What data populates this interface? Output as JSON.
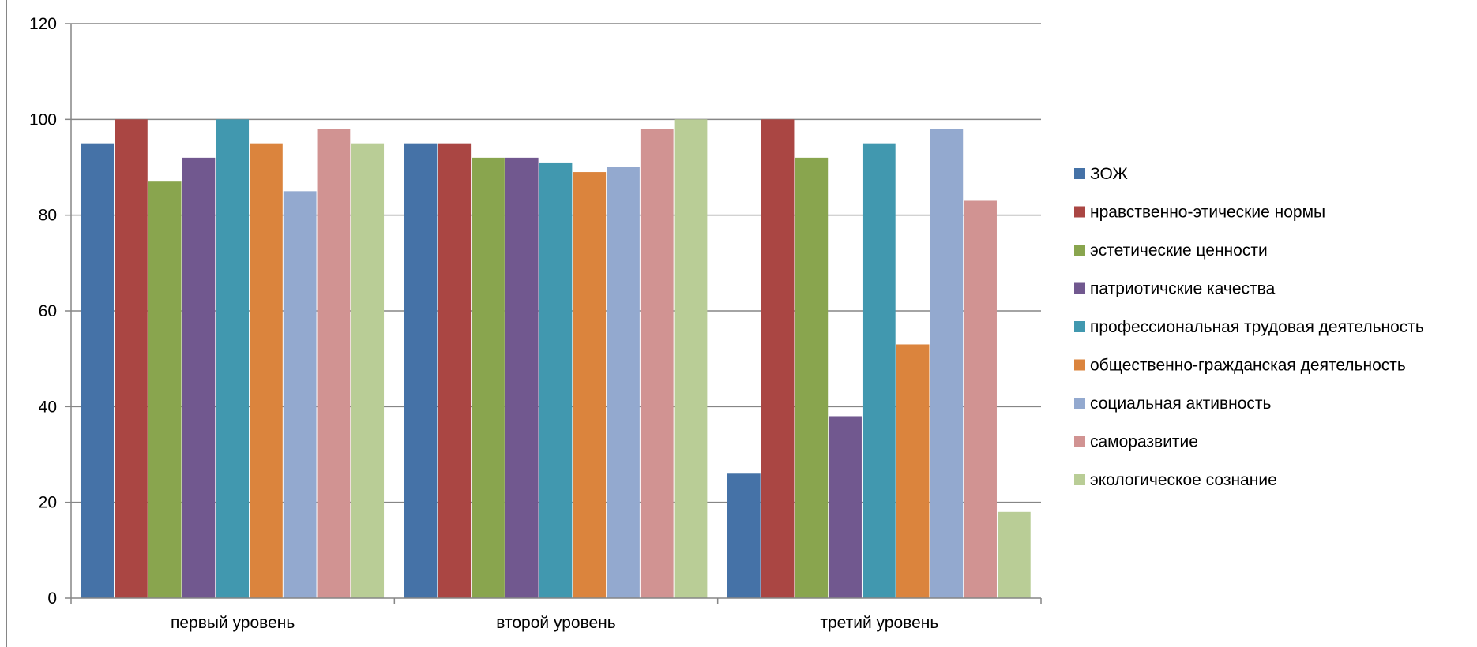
{
  "chart_data": {
    "type": "bar",
    "categories": [
      "первый уровень",
      "второй уровень",
      "третий уровень"
    ],
    "ylim": [
      0,
      120
    ],
    "yticks": [
      0,
      20,
      40,
      60,
      80,
      100,
      120
    ],
    "grid": true,
    "legend_position": "right",
    "series": [
      {
        "name": "ЗОЖ",
        "color": "#4572A7",
        "values": [
          95,
          95,
          26
        ]
      },
      {
        "name": "нравственно-этические нормы",
        "color": "#AA4643",
        "values": [
          100,
          95,
          100
        ]
      },
      {
        "name": "эстетические ценности",
        "color": "#89A54E",
        "values": [
          87,
          92,
          92
        ]
      },
      {
        "name": "патриотичские качества",
        "color": "#71588F",
        "values": [
          92,
          92,
          38
        ]
      },
      {
        "name": "профессиональная трудовая деятельность",
        "color": "#4198AF",
        "values": [
          100,
          91,
          95
        ]
      },
      {
        "name": "общественно-гражданская деятельность",
        "color": "#DB843D",
        "values": [
          95,
          89,
          53
        ]
      },
      {
        "name": "социальная активность",
        "color": "#93A9CF",
        "values": [
          85,
          90,
          98
        ]
      },
      {
        "name": "саморазвитие",
        "color": "#D19392",
        "values": [
          98,
          98,
          83
        ]
      },
      {
        "name": "экологическое сознание",
        "color": "#B9CD96",
        "values": [
          95,
          100,
          18
        ]
      }
    ]
  }
}
